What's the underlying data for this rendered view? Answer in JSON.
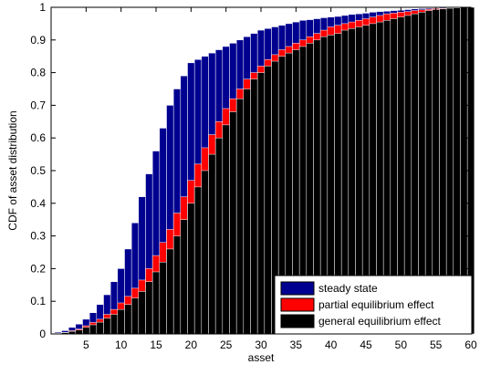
{
  "chart_data": {
    "type": "bar",
    "xlabel": "asset",
    "ylabel": "CDF of asset distribution",
    "xlim": [
      0,
      60
    ],
    "ylim": [
      0,
      1
    ],
    "xticks": [
      5,
      10,
      15,
      20,
      25,
      30,
      35,
      40,
      45,
      50,
      55,
      60
    ],
    "yticks": [
      0,
      0.1,
      0.2,
      0.3,
      0.4,
      0.5,
      0.6,
      0.7,
      0.8,
      0.9,
      1
    ],
    "xtick_labels": [
      "5",
      "10",
      "15",
      "20",
      "25",
      "30",
      "35",
      "40",
      "45",
      "50",
      "55",
      "60"
    ],
    "ytick_labels": [
      "0",
      "0.1",
      "0.2",
      "0.3",
      "0.4",
      "0.5",
      "0.6",
      "0.7",
      "0.8",
      "0.9",
      "1"
    ],
    "grid": false,
    "legend_position": "bottom-right",
    "bar_width": 1,
    "x": [
      1,
      2,
      3,
      4,
      5,
      6,
      7,
      8,
      9,
      10,
      11,
      12,
      13,
      14,
      15,
      16,
      17,
      18,
      19,
      20,
      21,
      22,
      23,
      24,
      25,
      26,
      27,
      28,
      29,
      30,
      31,
      32,
      33,
      34,
      35,
      36,
      37,
      38,
      39,
      40,
      41,
      42,
      43,
      44,
      45,
      46,
      47,
      48,
      49,
      50,
      51,
      52,
      53,
      54,
      55,
      56,
      57,
      58,
      59,
      60
    ],
    "series": [
      {
        "name": "steady state",
        "color": "#000090",
        "values": [
          0.005,
          0.01,
          0.02,
          0.03,
          0.045,
          0.065,
          0.09,
          0.12,
          0.16,
          0.2,
          0.26,
          0.34,
          0.42,
          0.49,
          0.56,
          0.63,
          0.7,
          0.75,
          0.79,
          0.83,
          0.84,
          0.85,
          0.86,
          0.87,
          0.88,
          0.89,
          0.9,
          0.91,
          0.92,
          0.93,
          0.935,
          0.94,
          0.945,
          0.95,
          0.955,
          0.96,
          0.962,
          0.965,
          0.968,
          0.97,
          0.972,
          0.975,
          0.978,
          0.98,
          0.982,
          0.985,
          0.987,
          0.988,
          0.99,
          0.991,
          0.993,
          0.995,
          0.996,
          0.997,
          0.998,
          0.999,
          0.999,
          1,
          1,
          1
        ]
      },
      {
        "name": "partial equilibrium effect",
        "color": "#ff0000",
        "values": [
          0.002,
          0.005,
          0.01,
          0.015,
          0.025,
          0.035,
          0.045,
          0.06,
          0.075,
          0.095,
          0.115,
          0.14,
          0.165,
          0.2,
          0.24,
          0.28,
          0.32,
          0.37,
          0.42,
          0.47,
          0.52,
          0.57,
          0.61,
          0.65,
          0.69,
          0.72,
          0.75,
          0.78,
          0.8,
          0.82,
          0.84,
          0.855,
          0.87,
          0.88,
          0.89,
          0.9,
          0.91,
          0.92,
          0.93,
          0.94,
          0.945,
          0.95,
          0.955,
          0.96,
          0.965,
          0.97,
          0.975,
          0.98,
          0.982,
          0.985,
          0.987,
          0.99,
          0.992,
          0.994,
          0.996,
          0.997,
          0.998,
          0.999,
          1,
          1
        ]
      },
      {
        "name": "general equilibrium effect",
        "color": "#000000",
        "values": [
          0.002,
          0.004,
          0.008,
          0.012,
          0.02,
          0.028,
          0.036,
          0.048,
          0.06,
          0.075,
          0.09,
          0.11,
          0.13,
          0.16,
          0.19,
          0.22,
          0.26,
          0.3,
          0.35,
          0.4,
          0.45,
          0.5,
          0.55,
          0.6,
          0.64,
          0.68,
          0.72,
          0.75,
          0.78,
          0.8,
          0.82,
          0.835,
          0.85,
          0.86,
          0.87,
          0.88,
          0.89,
          0.9,
          0.91,
          0.915,
          0.92,
          0.93,
          0.935,
          0.94,
          0.945,
          0.95,
          0.955,
          0.96,
          0.965,
          0.97,
          0.975,
          0.98,
          0.985,
          0.99,
          0.993,
          0.995,
          0.997,
          0.998,
          1,
          1
        ]
      }
    ]
  }
}
